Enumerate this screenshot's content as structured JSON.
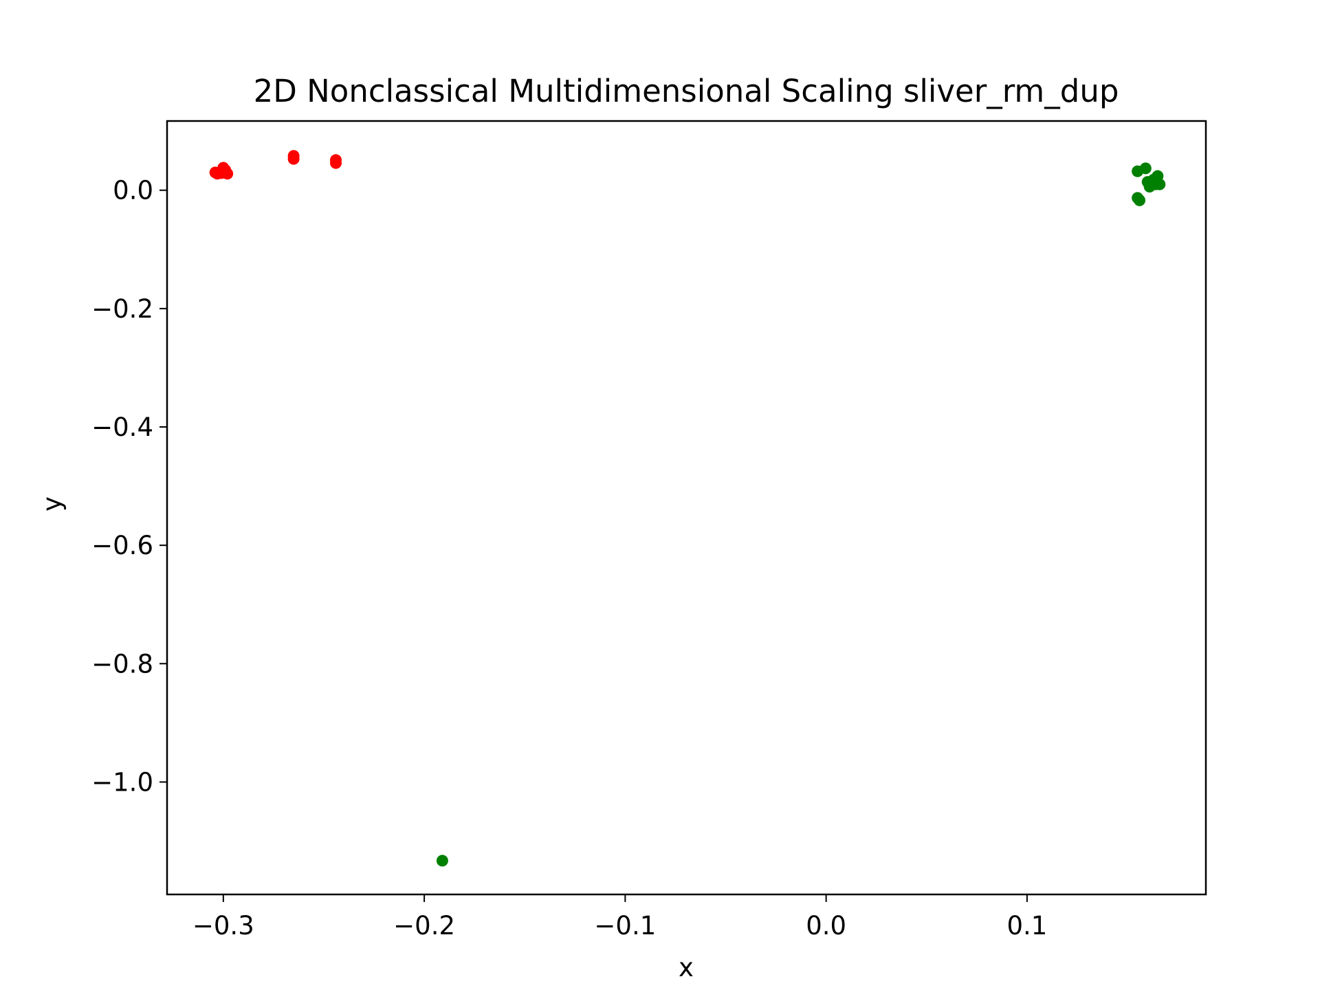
{
  "chart_data": {
    "type": "scatter",
    "title": "2D Nonclassical Multidimensional Scaling sliver_rm_dup",
    "xlabel": "x",
    "ylabel": "y",
    "xlim": [
      -0.328,
      0.189
    ],
    "ylim": [
      -1.19,
      0.117
    ],
    "xticks": [
      -0.3,
      -0.2,
      -0.1,
      0.0,
      0.1
    ],
    "xtick_labels": [
      "−0.3",
      "−0.2",
      "−0.1",
      "0.0",
      "0.1"
    ],
    "yticks": [
      0.0,
      -0.2,
      -0.4,
      -0.6,
      -0.8,
      -1.0
    ],
    "ytick_labels": [
      "0.0",
      "−0.2",
      "−0.4",
      "−0.6",
      "−0.8",
      "−1.0"
    ],
    "grid": false,
    "series": [
      {
        "color": "#ff0000",
        "points": [
          [
            -0.304,
            0.03
          ],
          [
            -0.303,
            0.028
          ],
          [
            -0.301,
            0.029
          ],
          [
            -0.3,
            0.038
          ],
          [
            -0.299,
            0.034
          ],
          [
            -0.298,
            0.028
          ],
          [
            -0.265,
            0.058
          ],
          [
            -0.265,
            0.053
          ],
          [
            -0.244,
            0.051
          ],
          [
            -0.244,
            0.046
          ]
        ]
      },
      {
        "color": "#008000",
        "points": [
          [
            0.155,
            0.032
          ],
          [
            0.159,
            0.037
          ],
          [
            0.16,
            0.014
          ],
          [
            0.161,
            0.006
          ],
          [
            0.163,
            0.018
          ],
          [
            0.164,
            0.01
          ],
          [
            0.165,
            0.024
          ],
          [
            0.166,
            0.01
          ],
          [
            0.155,
            -0.013
          ],
          [
            0.156,
            -0.017
          ],
          [
            -0.191,
            -1.133
          ]
        ]
      }
    ]
  }
}
